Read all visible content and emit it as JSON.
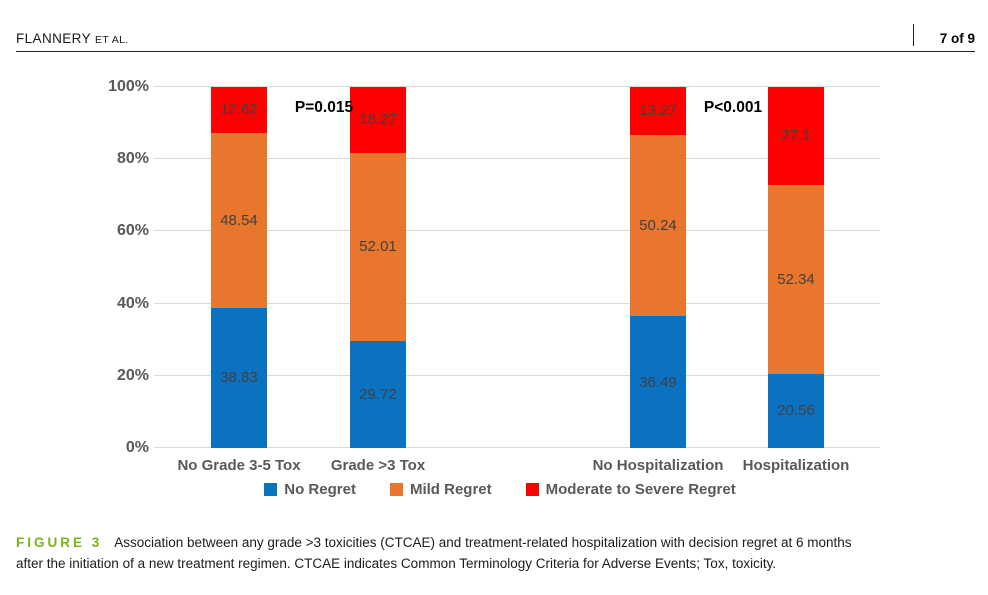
{
  "header": {
    "authors": "FLANNERY",
    "authors_suffix": "ET AL.",
    "page_indicator": "7 of 9"
  },
  "chart_data": {
    "type": "bar",
    "stacked": true,
    "categories": [
      "No Grade 3-5 Tox",
      "Grade >3 Tox",
      "No Hospitalization",
      "Hospitalization"
    ],
    "series": [
      {
        "name": "No Regret",
        "color": "#0B72C2",
        "values": [
          38.83,
          29.72,
          36.49,
          20.56
        ]
      },
      {
        "name": "Mild Regret",
        "color": "#E8762D",
        "values": [
          48.54,
          52.01,
          50.24,
          52.34
        ]
      },
      {
        "name": "Moderate to Severe Regret",
        "color": "#FF0000",
        "values": [
          12.62,
          18.27,
          13.27,
          27.1
        ]
      }
    ],
    "yticks": [
      "0%",
      "20%",
      "40%",
      "60%",
      "80%",
      "100%"
    ],
    "ylim": [
      0,
      100
    ],
    "grid": "horizontal",
    "legend_position": "bottom",
    "annotations": [
      {
        "text": "P=0.015",
        "between": [
          "No Grade 3-5 Tox",
          "Grade >3 Tox"
        ]
      },
      {
        "text": "P<0.001",
        "between": [
          "No Hospitalization",
          "Hospitalization"
        ]
      }
    ],
    "colors": {
      "grid": "#D9D9D9",
      "axis_text": "#595959",
      "value_label_text": "#404040",
      "annotation_text": "#000000"
    }
  },
  "caption": {
    "label": "FIGURE 3",
    "label_color": "#7AB41C",
    "line1": "Association between any grade >3 toxicities (CTCAE) and treatment-related hospitalization with decision regret at 6 months",
    "line2": "after the initiation of a new treatment regimen. CTCAE indicates Common Terminology Criteria for Adverse Events; Tox, toxicity."
  }
}
